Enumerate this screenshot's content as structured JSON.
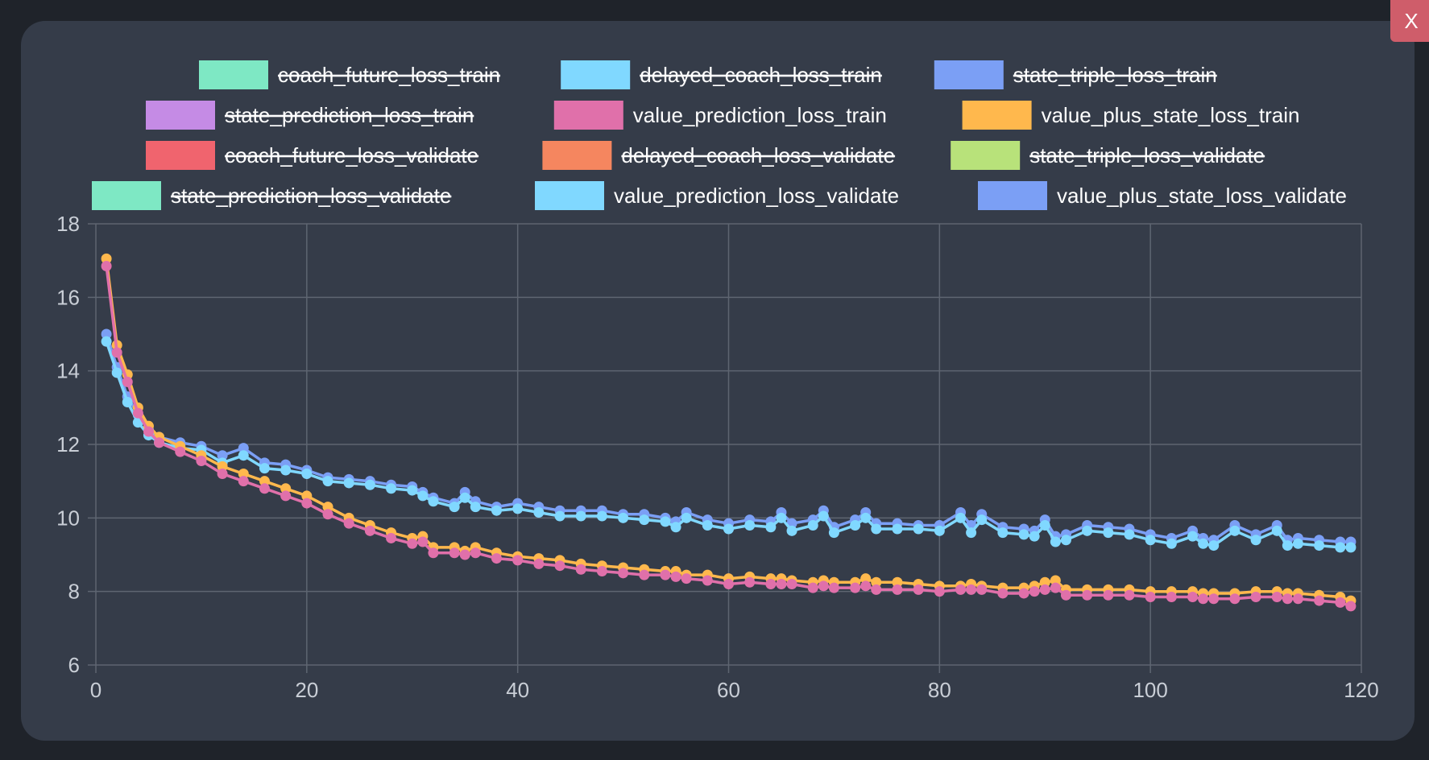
{
  "close_label": "X",
  "chart_data": {
    "type": "line",
    "title": "",
    "xlabel": "",
    "ylabel": "",
    "xlim": [
      0,
      120
    ],
    "ylim": [
      6,
      18
    ],
    "x_ticks": [
      "0",
      "20",
      "40",
      "60",
      "80",
      "100",
      "120"
    ],
    "y_ticks": [
      "6",
      "8",
      "10",
      "12",
      "14",
      "16",
      "18"
    ],
    "grid": true,
    "legend_position": "top",
    "legend": [
      {
        "name": "coach_future_loss_train",
        "color": "#7ee8c4",
        "hidden": true
      },
      {
        "name": "delayed_coach_loss_train",
        "color": "#80d8ff",
        "hidden": true
      },
      {
        "name": "state_triple_loss_train",
        "color": "#7b9ff5",
        "hidden": true
      },
      {
        "name": "state_prediction_loss_train",
        "color": "#c58be5",
        "hidden": true
      },
      {
        "name": "value_prediction_loss_train",
        "color": "#e070aa",
        "hidden": false
      },
      {
        "name": "value_plus_state_loss_train",
        "color": "#ffb84d",
        "hidden": false
      },
      {
        "name": "coach_future_loss_validate",
        "color": "#f0646e",
        "hidden": true
      },
      {
        "name": "delayed_coach_loss_validate",
        "color": "#f5865f",
        "hidden": true
      },
      {
        "name": "state_triple_loss_validate",
        "color": "#b8e27a",
        "hidden": true
      },
      {
        "name": "state_prediction_loss_validate",
        "color": "#7ee8c4",
        "hidden": true
      },
      {
        "name": "value_prediction_loss_validate",
        "color": "#80d8ff",
        "hidden": false
      },
      {
        "name": "value_plus_state_loss_validate",
        "color": "#7b9ff5",
        "hidden": false
      }
    ],
    "x": [
      1,
      2,
      3,
      4,
      5,
      6,
      8,
      10,
      12,
      14,
      16,
      18,
      20,
      22,
      24,
      26,
      28,
      30,
      31,
      32,
      34,
      35,
      36,
      38,
      40,
      42,
      44,
      46,
      48,
      50,
      52,
      54,
      55,
      56,
      58,
      60,
      62,
      64,
      65,
      66,
      68,
      69,
      70,
      72,
      73,
      74,
      76,
      78,
      80,
      82,
      83,
      84,
      86,
      88,
      89,
      90,
      91,
      92,
      94,
      96,
      98,
      100,
      102,
      104,
      105,
      106,
      108,
      110,
      112,
      113,
      114,
      116,
      118,
      119
    ],
    "series": [
      {
        "name": "value_plus_state_loss_validate",
        "color": "#7b9ff5",
        "values": [
          15.0,
          14.1,
          13.3,
          12.8,
          12.4,
          12.2,
          12.05,
          11.95,
          11.7,
          11.9,
          11.5,
          11.45,
          11.3,
          11.1,
          11.05,
          11.0,
          10.9,
          10.85,
          10.7,
          10.55,
          10.4,
          10.7,
          10.45,
          10.3,
          10.4,
          10.3,
          10.2,
          10.2,
          10.2,
          10.1,
          10.1,
          10.0,
          9.9,
          10.15,
          9.95,
          9.85,
          9.95,
          9.9,
          10.15,
          9.85,
          9.95,
          10.2,
          9.75,
          9.95,
          10.15,
          9.85,
          9.85,
          9.8,
          9.8,
          10.15,
          9.8,
          10.1,
          9.75,
          9.7,
          9.65,
          9.95,
          9.5,
          9.55,
          9.8,
          9.75,
          9.7,
          9.55,
          9.45,
          9.65,
          9.45,
          9.4,
          9.8,
          9.55,
          9.8,
          9.4,
          9.45,
          9.4,
          9.35,
          9.35
        ]
      },
      {
        "name": "value_prediction_loss_validate",
        "color": "#80d8ff",
        "values": [
          14.8,
          13.95,
          13.15,
          12.6,
          12.25,
          12.05,
          11.9,
          11.85,
          11.5,
          11.7,
          11.35,
          11.3,
          11.2,
          11.0,
          10.95,
          10.9,
          10.8,
          10.75,
          10.6,
          10.45,
          10.3,
          10.55,
          10.3,
          10.2,
          10.25,
          10.15,
          10.05,
          10.05,
          10.05,
          10.0,
          9.95,
          9.9,
          9.75,
          10.0,
          9.8,
          9.7,
          9.8,
          9.75,
          10.0,
          9.65,
          9.8,
          10.05,
          9.6,
          9.8,
          10.0,
          9.7,
          9.7,
          9.7,
          9.65,
          10.0,
          9.6,
          9.95,
          9.6,
          9.55,
          9.5,
          9.8,
          9.35,
          9.4,
          9.65,
          9.6,
          9.55,
          9.4,
          9.3,
          9.5,
          9.3,
          9.25,
          9.65,
          9.4,
          9.65,
          9.25,
          9.3,
          9.25,
          9.2,
          9.2
        ]
      },
      {
        "name": "value_plus_state_loss_train",
        "color": "#ffb84d",
        "values": [
          17.05,
          14.7,
          13.9,
          13.0,
          12.5,
          12.2,
          11.95,
          11.7,
          11.4,
          11.2,
          11.0,
          10.8,
          10.6,
          10.3,
          10.0,
          9.8,
          9.6,
          9.45,
          9.5,
          9.2,
          9.2,
          9.1,
          9.2,
          9.05,
          8.95,
          8.9,
          8.85,
          8.75,
          8.7,
          8.65,
          8.6,
          8.55,
          8.55,
          8.45,
          8.45,
          8.35,
          8.4,
          8.35,
          8.35,
          8.3,
          8.25,
          8.3,
          8.25,
          8.25,
          8.35,
          8.25,
          8.25,
          8.2,
          8.15,
          8.15,
          8.2,
          8.15,
          8.1,
          8.1,
          8.15,
          8.25,
          8.3,
          8.05,
          8.05,
          8.05,
          8.05,
          8.0,
          8.0,
          8.0,
          7.95,
          7.95,
          7.95,
          8.0,
          8.0,
          7.95,
          7.95,
          7.9,
          7.85,
          7.75
        ]
      },
      {
        "name": "value_prediction_loss_train",
        "color": "#e070aa",
        "values": [
          16.85,
          14.5,
          13.7,
          12.85,
          12.35,
          12.05,
          11.8,
          11.55,
          11.2,
          11.0,
          10.8,
          10.6,
          10.4,
          10.1,
          9.85,
          9.65,
          9.45,
          9.3,
          9.35,
          9.05,
          9.05,
          9.0,
          9.05,
          8.9,
          8.85,
          8.75,
          8.7,
          8.6,
          8.55,
          8.5,
          8.45,
          8.45,
          8.4,
          8.35,
          8.3,
          8.2,
          8.25,
          8.2,
          8.2,
          8.2,
          8.1,
          8.15,
          8.1,
          8.1,
          8.15,
          8.05,
          8.05,
          8.05,
          8.0,
          8.05,
          8.05,
          8.05,
          7.95,
          7.95,
          8.0,
          8.05,
          8.1,
          7.9,
          7.9,
          7.9,
          7.9,
          7.85,
          7.85,
          7.85,
          7.8,
          7.8,
          7.8,
          7.85,
          7.85,
          7.8,
          7.8,
          7.75,
          7.7,
          7.6
        ]
      }
    ]
  }
}
